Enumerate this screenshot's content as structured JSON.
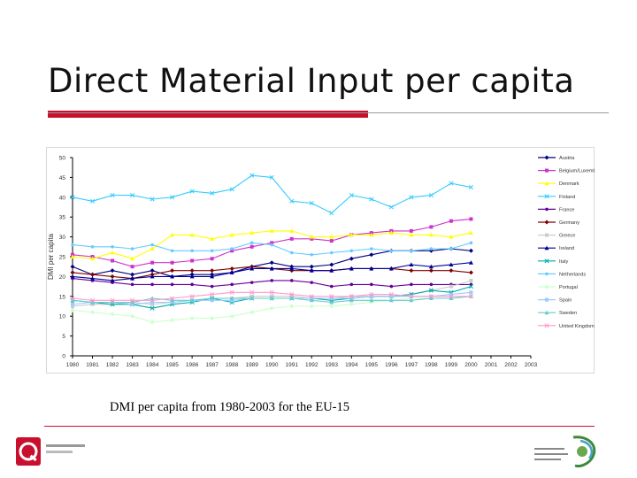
{
  "slide": {
    "title": "Direct Material Input per capita",
    "caption": "DMI per capita from 1980-2003 for the EU-15",
    "logo_left_text": "Queen's University Belfast",
    "logo_right_text": "Institute for sustainable world"
  },
  "colors": {
    "accent_red": "#c8102e"
  },
  "chart_data": {
    "type": "line",
    "title": "",
    "xlabel": "",
    "ylabel": "DMI per capita",
    "ylim": [
      0,
      50
    ],
    "yticks": [
      0,
      5,
      10,
      15,
      20,
      25,
      30,
      35,
      40,
      45,
      50
    ],
    "categories": [
      "1980",
      "1981",
      "1982",
      "1983",
      "1984",
      "1985",
      "1986",
      "1987",
      "1988",
      "1989",
      "1990",
      "1991",
      "1992",
      "1993",
      "1994",
      "1995",
      "1996",
      "1997",
      "1998",
      "1999",
      "2000",
      "2001",
      "2002",
      "2003"
    ],
    "grid": false,
    "legend_position": "right",
    "series": [
      {
        "name": "Austria",
        "color": "#000080",
        "values": [
          22.5,
          20.5,
          21.5,
          20.5,
          21.5,
          20.0,
          20.5,
          20.5,
          21.0,
          22.5,
          23.5,
          22.5,
          22.5,
          23.0,
          24.5,
          25.5,
          26.5,
          26.5,
          26.5,
          27.0,
          26.5,
          null,
          null,
          null
        ]
      },
      {
        "name": "Belgium/Luxembourg",
        "color": "#cc33cc",
        "values": [
          25.5,
          25.0,
          24.0,
          22.5,
          23.5,
          23.5,
          24.0,
          24.5,
          26.5,
          27.5,
          28.5,
          29.5,
          29.5,
          29.0,
          30.5,
          31.0,
          31.5,
          31.5,
          32.5,
          34.0,
          34.5,
          null,
          null,
          null
        ]
      },
      {
        "name": "Denmark",
        "color": "#ffff00",
        "values": [
          25.0,
          24.5,
          26.0,
          24.5,
          27.0,
          30.5,
          30.5,
          29.5,
          30.5,
          31.0,
          31.5,
          31.5,
          30.0,
          30.0,
          30.5,
          30.5,
          31.0,
          30.5,
          30.5,
          30.0,
          31.0,
          null,
          null,
          null
        ]
      },
      {
        "name": "Finland",
        "color": "#33ccff",
        "values": [
          40.0,
          39.0,
          40.5,
          40.5,
          39.5,
          40.0,
          41.5,
          41.0,
          42.0,
          45.5,
          45.0,
          39.0,
          38.5,
          36.0,
          40.5,
          39.5,
          37.5,
          40.0,
          40.5,
          43.5,
          42.5,
          null,
          null,
          null
        ]
      },
      {
        "name": "France",
        "color": "#660099",
        "values": [
          19.5,
          19.0,
          18.5,
          18.0,
          18.0,
          18.0,
          18.0,
          17.5,
          18.0,
          18.5,
          19.0,
          19.0,
          18.5,
          17.5,
          18.0,
          18.0,
          17.5,
          18.0,
          18.0,
          18.0,
          18.0,
          null,
          null,
          null
        ]
      },
      {
        "name": "Germany",
        "color": "#800000",
        "values": [
          21.0,
          20.5,
          20.0,
          19.5,
          20.5,
          21.5,
          21.5,
          21.5,
          22.0,
          22.5,
          22.0,
          21.5,
          21.5,
          21.5,
          22.0,
          22.0,
          22.0,
          21.5,
          21.5,
          21.5,
          21.0,
          null,
          null,
          null
        ]
      },
      {
        "name": "Greece",
        "color": "#cccccc",
        "values": [
          12.5,
          13.0,
          13.0,
          13.5,
          13.0,
          13.5,
          14.0,
          14.5,
          14.5,
          15.0,
          15.0,
          15.0,
          14.5,
          14.5,
          15.0,
          15.0,
          15.0,
          15.5,
          16.5,
          17.5,
          19.0,
          null,
          null,
          null
        ]
      },
      {
        "name": "Ireland",
        "color": "#000099",
        "values": [
          20.0,
          19.5,
          19.0,
          19.5,
          20.0,
          20.0,
          20.0,
          20.0,
          21.0,
          22.0,
          22.0,
          22.0,
          21.5,
          21.5,
          22.0,
          22.0,
          22.0,
          23.0,
          22.5,
          23.0,
          23.5,
          null,
          null,
          null
        ]
      },
      {
        "name": "Italy",
        "color": "#00aaaa",
        "values": [
          14.0,
          13.5,
          13.0,
          13.0,
          12.0,
          13.0,
          13.5,
          14.5,
          13.5,
          14.5,
          14.5,
          14.5,
          14.5,
          14.0,
          14.5,
          15.0,
          15.0,
          15.5,
          16.5,
          16.0,
          17.5,
          null,
          null,
          null
        ]
      },
      {
        "name": "Netherlands",
        "color": "#66ccff",
        "values": [
          28.0,
          27.5,
          27.5,
          27.0,
          28.0,
          26.5,
          26.5,
          26.5,
          27.0,
          28.5,
          28.0,
          26.0,
          25.5,
          26.0,
          26.5,
          27.0,
          26.5,
          26.5,
          27.0,
          27.0,
          28.5,
          null,
          null,
          null
        ]
      },
      {
        "name": "Portugal",
        "color": "#ccffcc",
        "values": [
          11.5,
          11.0,
          10.5,
          10.0,
          8.5,
          9.0,
          9.5,
          9.5,
          10.0,
          11.0,
          12.0,
          12.5,
          12.5,
          12.5,
          13.0,
          13.5,
          14.0,
          14.5,
          14.5,
          14.5,
          15.0,
          null,
          null,
          null
        ]
      },
      {
        "name": "Spain",
        "color": "#99ccff",
        "values": [
          13.0,
          13.5,
          13.5,
          13.0,
          13.5,
          13.5,
          14.0,
          14.0,
          14.0,
          14.5,
          14.5,
          14.5,
          14.5,
          14.5,
          14.5,
          15.0,
          15.0,
          15.0,
          15.0,
          15.5,
          16.0,
          null,
          null,
          null
        ]
      },
      {
        "name": "Sweden",
        "color": "#66cccc",
        "values": [
          14.0,
          13.5,
          13.5,
          13.5,
          14.5,
          14.0,
          14.0,
          14.5,
          14.5,
          14.5,
          14.5,
          14.5,
          14.0,
          13.5,
          14.0,
          14.0,
          14.0,
          14.0,
          14.5,
          14.5,
          15.0,
          null,
          null,
          null
        ]
      },
      {
        "name": "United Kingdom",
        "color": "#ff99cc",
        "values": [
          14.5,
          14.0,
          14.0,
          14.0,
          14.0,
          14.5,
          15.0,
          15.5,
          16.0,
          16.0,
          16.0,
          15.5,
          15.0,
          15.0,
          15.0,
          15.5,
          15.5,
          15.0,
          15.0,
          15.0,
          15.0,
          null,
          null,
          null
        ]
      }
    ]
  }
}
